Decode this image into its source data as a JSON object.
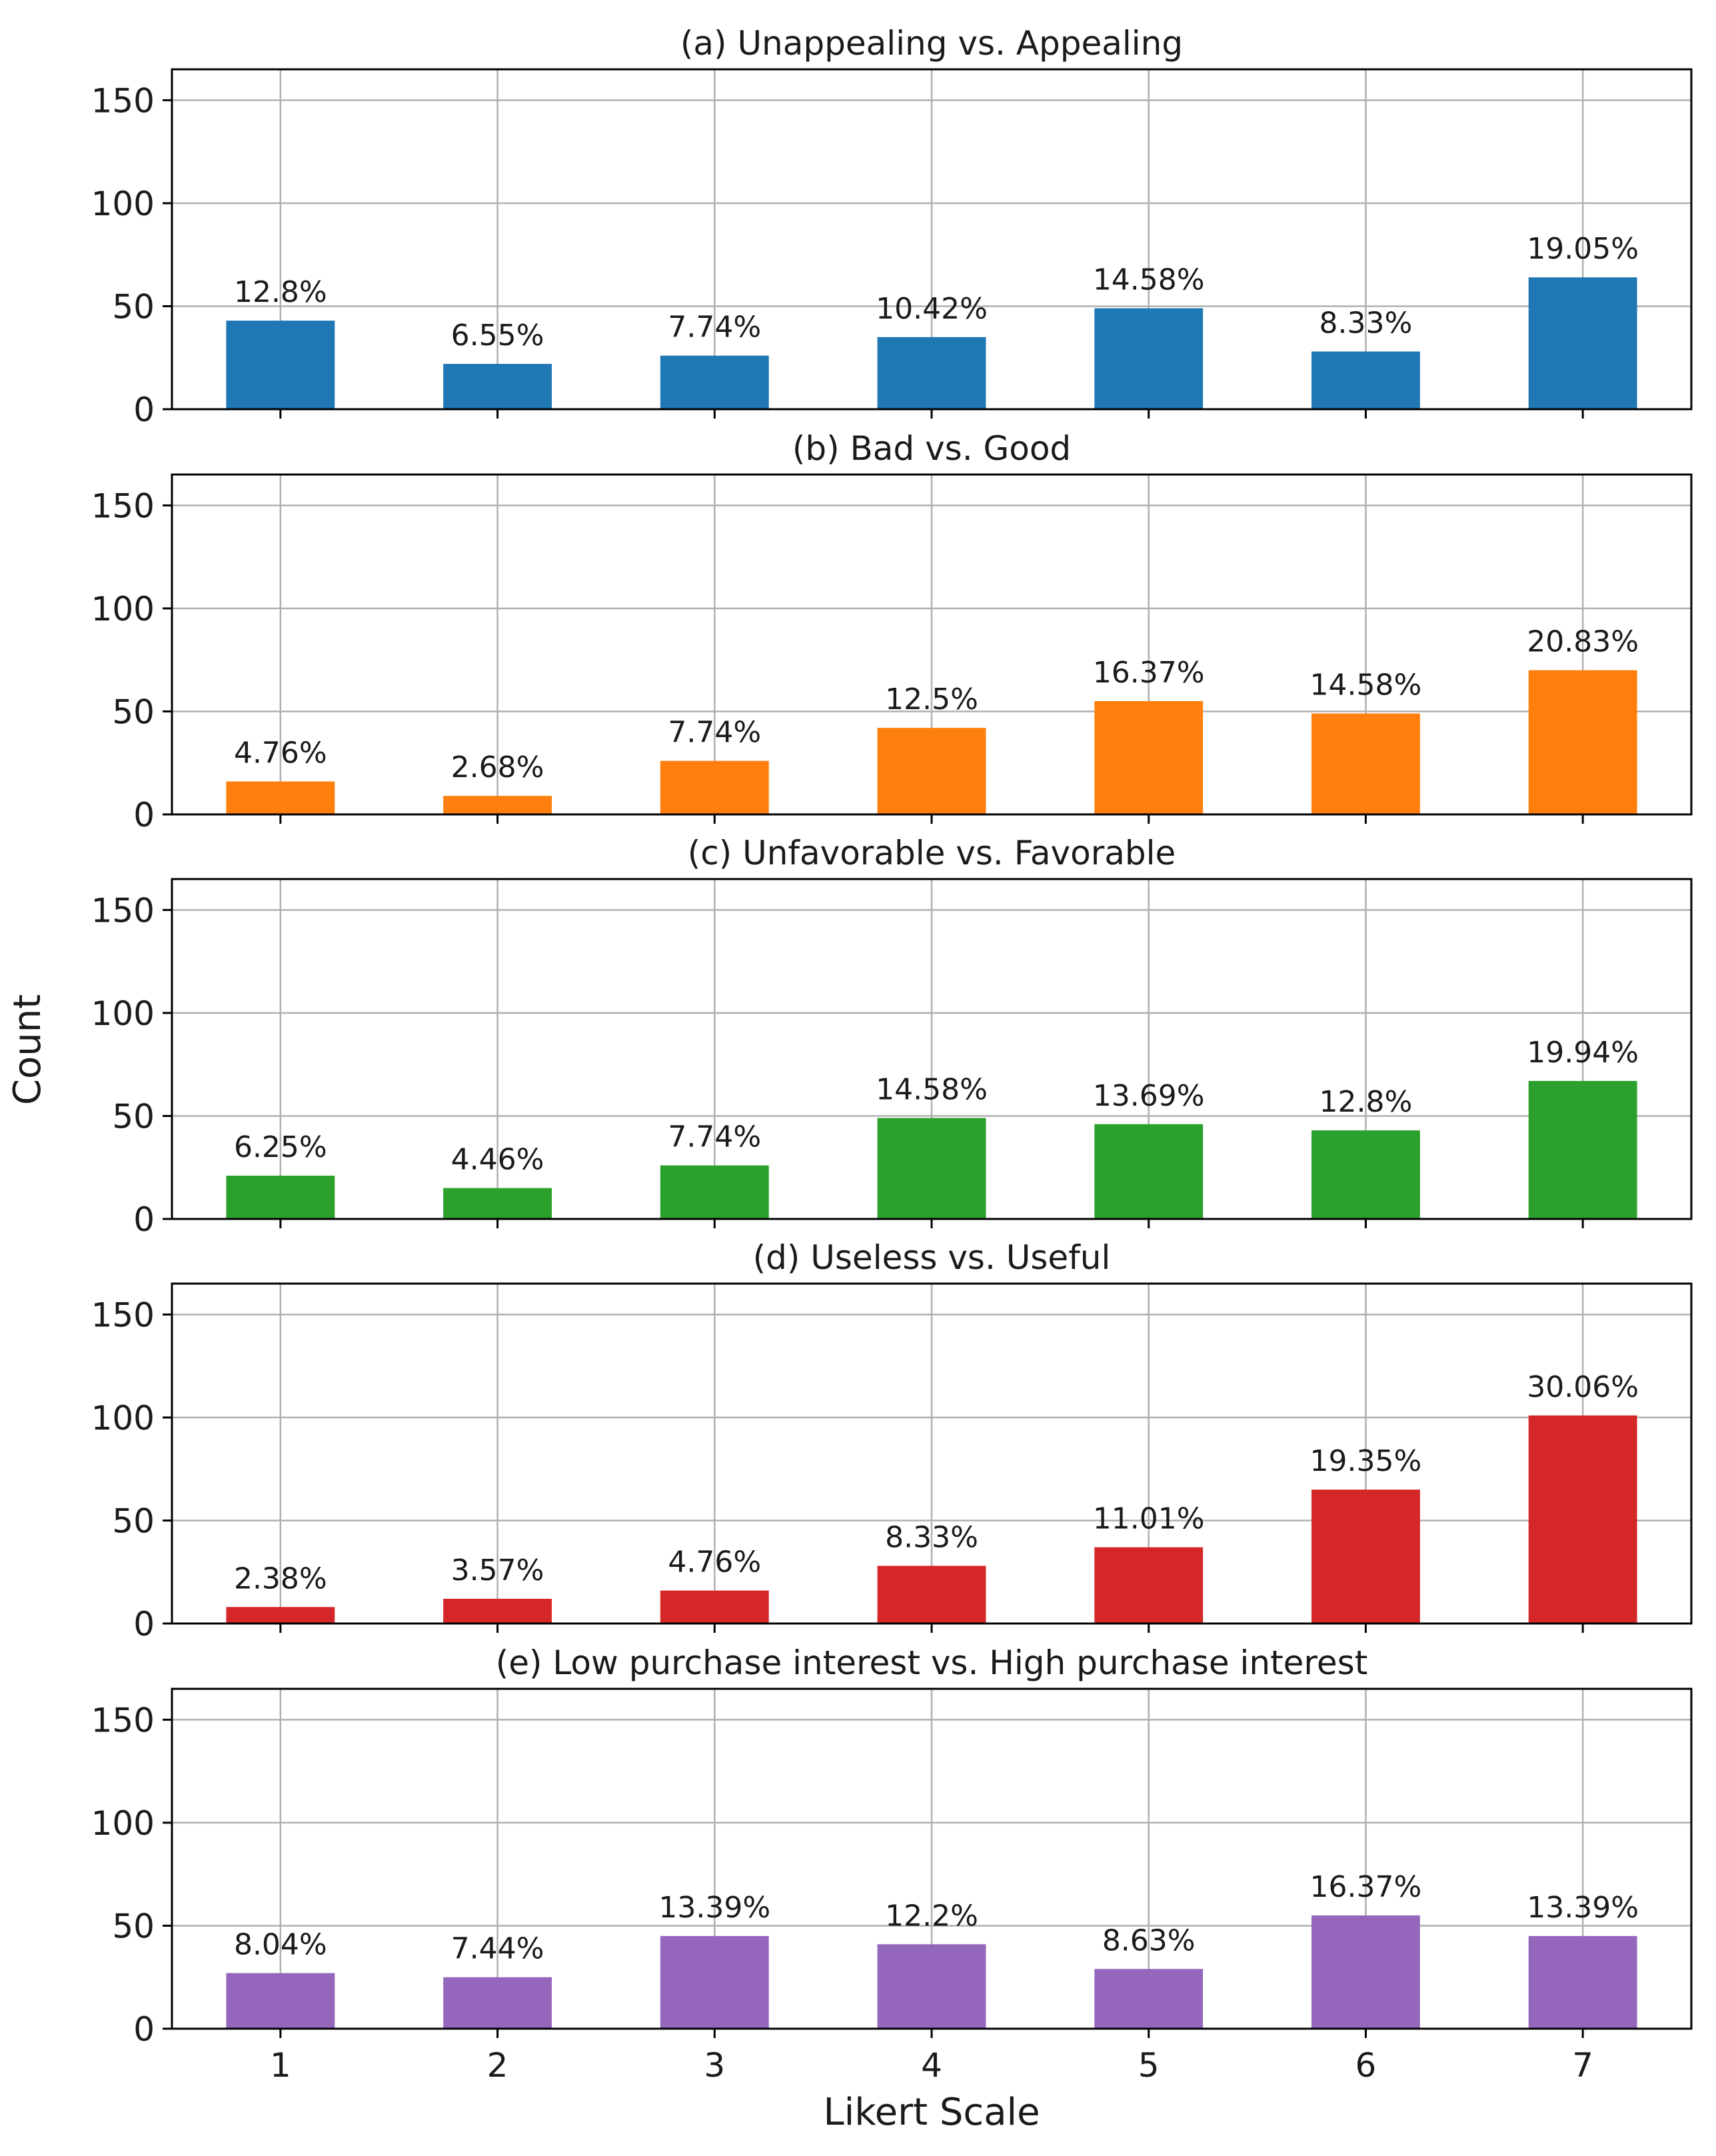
{
  "figure": {
    "ylabel": "Count",
    "xlabel": "Likert Scale"
  },
  "chart_data": [
    {
      "type": "bar",
      "title": "(a) Unappealing vs. Appealing",
      "categories": [
        "1",
        "2",
        "3",
        "4",
        "5",
        "6",
        "7"
      ],
      "values": [
        43,
        22,
        26,
        35,
        49,
        28,
        64
      ],
      "labels": [
        "12.8%",
        "6.55%",
        "7.74%",
        "10.42%",
        "14.58%",
        "8.33%",
        "19.05%"
      ],
      "ylim": [
        0,
        165
      ],
      "yticks": [
        "0",
        "50",
        "100",
        "150"
      ],
      "color": "#1f77b4",
      "grid": true
    },
    {
      "type": "bar",
      "title": "(b) Bad vs. Good",
      "categories": [
        "1",
        "2",
        "3",
        "4",
        "5",
        "6",
        "7"
      ],
      "values": [
        16,
        9,
        26,
        42,
        55,
        49,
        70
      ],
      "labels": [
        "4.76%",
        "2.68%",
        "7.74%",
        "12.5%",
        "16.37%",
        "14.58%",
        "20.83%"
      ],
      "ylim": [
        0,
        165
      ],
      "yticks": [
        "0",
        "50",
        "100",
        "150"
      ],
      "color": "#ff7f0e",
      "grid": true
    },
    {
      "type": "bar",
      "title": "(c) Unfavorable vs. Favorable",
      "categories": [
        "1",
        "2",
        "3",
        "4",
        "5",
        "6",
        "7"
      ],
      "values": [
        21,
        15,
        26,
        49,
        46,
        43,
        67
      ],
      "labels": [
        "6.25%",
        "4.46%",
        "7.74%",
        "14.58%",
        "13.69%",
        "12.8%",
        "19.94%"
      ],
      "ylim": [
        0,
        165
      ],
      "yticks": [
        "0",
        "50",
        "100",
        "150"
      ],
      "color": "#2ca02c",
      "grid": true
    },
    {
      "type": "bar",
      "title": "(d) Useless vs. Useful",
      "categories": [
        "1",
        "2",
        "3",
        "4",
        "5",
        "6",
        "7"
      ],
      "values": [
        8,
        12,
        16,
        28,
        37,
        65,
        101
      ],
      "labels": [
        "2.38%",
        "3.57%",
        "4.76%",
        "8.33%",
        "11.01%",
        "19.35%",
        "30.06%"
      ],
      "ylim": [
        0,
        165
      ],
      "yticks": [
        "0",
        "50",
        "100",
        "150"
      ],
      "color": "#d62728",
      "grid": true
    },
    {
      "type": "bar",
      "title": "(e) Low purchase interest vs. High purchase interest",
      "categories": [
        "1",
        "2",
        "3",
        "4",
        "5",
        "6",
        "7"
      ],
      "values": [
        27,
        25,
        45,
        41,
        29,
        55,
        45
      ],
      "labels": [
        "8.04%",
        "7.44%",
        "13.39%",
        "12.2%",
        "8.63%",
        "16.37%",
        "13.39%"
      ],
      "ylim": [
        0,
        165
      ],
      "yticks": [
        "0",
        "50",
        "100",
        "150"
      ],
      "color": "#9467bd",
      "grid": true
    }
  ]
}
